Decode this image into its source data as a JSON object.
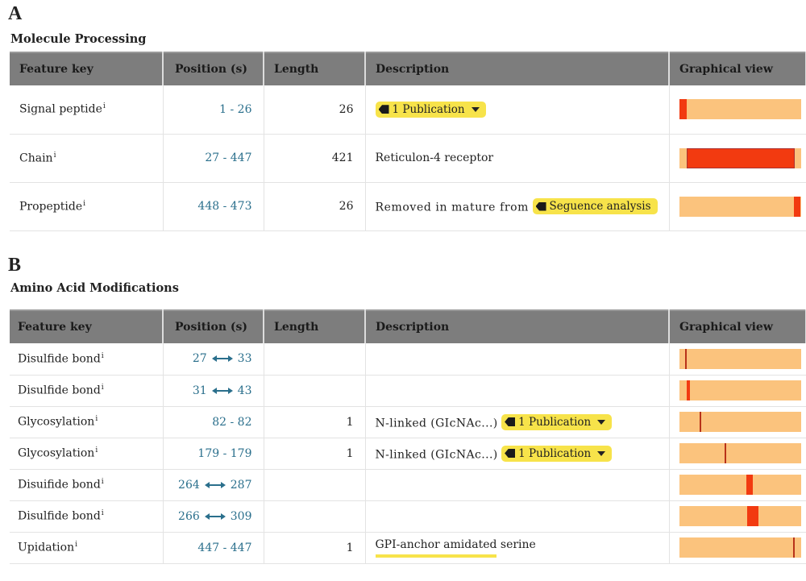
{
  "panelA": {
    "letter": "A",
    "title": "Molecule Processing",
    "headers": [
      "Feature key",
      "Position (s)",
      "Length",
      "Description",
      "Graphical view"
    ],
    "rows": [
      {
        "key": "Signal peptide",
        "pos": "1 - 26",
        "len": "26",
        "desc": "",
        "pub": "1 Publication",
        "bar": {
          "start": 1,
          "end": 26,
          "total": 473
        }
      },
      {
        "key": "Chain",
        "pos": "27 - 447",
        "len": "421",
        "desc": "Reticulon-4 receptor",
        "pub": "",
        "bar": {
          "start": 27,
          "end": 447,
          "total": 473
        }
      },
      {
        "key": "Propeptide",
        "pos": "448 - 473",
        "len": "26",
        "desc": "Removed in mature from",
        "pub": "Seguence analysis",
        "bar": {
          "start": 448,
          "end": 473,
          "total": 473
        }
      }
    ]
  },
  "panelB": {
    "letter": "B",
    "title": "Amino Acid Modifications",
    "headers": [
      "Feature key",
      "Position (s)",
      "Length",
      "Description",
      "Graphical view"
    ],
    "rows": [
      {
        "key": "Disulfide bond",
        "pos_a": "27",
        "pos_b": "33",
        "len": "",
        "desc": "",
        "pub": ""
      },
      {
        "key": "Disulfide bond",
        "pos_a": "31",
        "pos_b": "43",
        "len": "",
        "desc": "",
        "pub": ""
      },
      {
        "key": "Glycosylation",
        "pos": "82 - 82",
        "len": "1",
        "desc": "N-linked (GIcNAc...)",
        "pub": "1 Publication"
      },
      {
        "key": "Glycosylation",
        "pos": "179 - 179",
        "len": "1",
        "desc": "N-linked (GIcNAc...)",
        "pub": "1 Publication"
      },
      {
        "key": "Disuifide bond",
        "pos_a": "264",
        "pos_b": "287",
        "len": "",
        "desc": "",
        "pub": ""
      },
      {
        "key": "Disulfide bond",
        "pos_a": "266",
        "pos_b": "309",
        "len": "",
        "desc": "",
        "pub": ""
      },
      {
        "key": "Upidation",
        "pos": "447 - 447",
        "len": "1",
        "desc": "GPI-anchor amidated serine",
        "pub": ""
      }
    ]
  },
  "info_mark": "i",
  "colors": {
    "header_bg": "#7d7d7d",
    "bar_bg": "#fbc37d",
    "bar_fill": "#f23a10",
    "badge": "#f7e34a",
    "link": "#2a6f8c"
  }
}
